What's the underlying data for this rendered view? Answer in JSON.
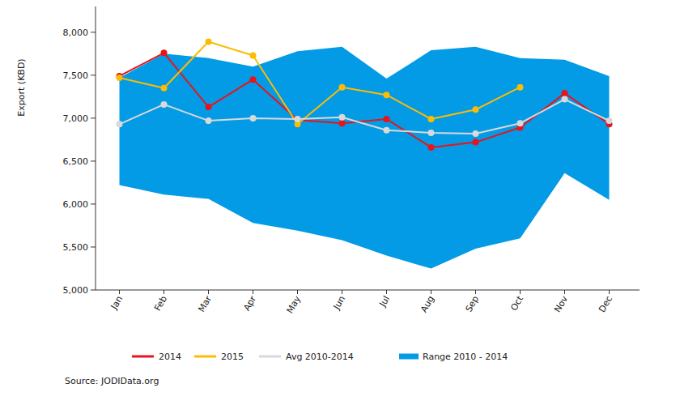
{
  "chart_data": {
    "type": "line",
    "y_label": "Export (KBD)",
    "source": "Source: JODIData.org",
    "categories": [
      "Jan",
      "Feb",
      "Mar",
      "Apr",
      "May",
      "Jun",
      "Jul",
      "Aug",
      "Sep",
      "Oct",
      "Nov",
      "Dec"
    ],
    "ylim": [
      5000,
      8300
    ],
    "yticks": [
      {
        "value": 5000,
        "label": "5,000"
      },
      {
        "value": 5500,
        "label": "5,500"
      },
      {
        "value": 6000,
        "label": "6,000"
      },
      {
        "value": 6500,
        "label": "6,500"
      },
      {
        "value": 7000,
        "label": "7,000"
      },
      {
        "value": 7500,
        "label": "7,500"
      },
      {
        "value": 8000,
        "label": "8,000"
      }
    ],
    "grid": false,
    "legend": "bottom",
    "series": [
      {
        "name": "2014",
        "color": "#e8141c",
        "type": "line",
        "marker": "circle",
        "values": [
          7490,
          7760,
          7130,
          7450,
          6980,
          6940,
          6990,
          6660,
          6720,
          6890,
          7290,
          6930
        ]
      },
      {
        "name": "2015",
        "color": "#fbbc05",
        "type": "line",
        "marker": "circle",
        "values": [
          7470,
          7350,
          7890,
          7730,
          6930,
          7360,
          7270,
          6990,
          7100,
          7360,
          null,
          null
        ]
      },
      {
        "name": "Avg 2010-2014",
        "color": "#d9d9d9",
        "type": "line",
        "marker": "circle",
        "values": [
          6930,
          7160,
          6970,
          7000,
          6990,
          7010,
          6860,
          6830,
          6820,
          6940,
          7220,
          6970
        ]
      },
      {
        "name": "Range 2010 - 2014",
        "color": "#039be5",
        "type": "range",
        "low": [
          6220,
          6110,
          6060,
          5780,
          5690,
          5580,
          5400,
          5250,
          5480,
          5600,
          6360,
          6050
        ],
        "high": [
          7470,
          7750,
          7700,
          7600,
          7780,
          7830,
          7460,
          7790,
          7830,
          7700,
          7680,
          7490
        ]
      }
    ]
  }
}
